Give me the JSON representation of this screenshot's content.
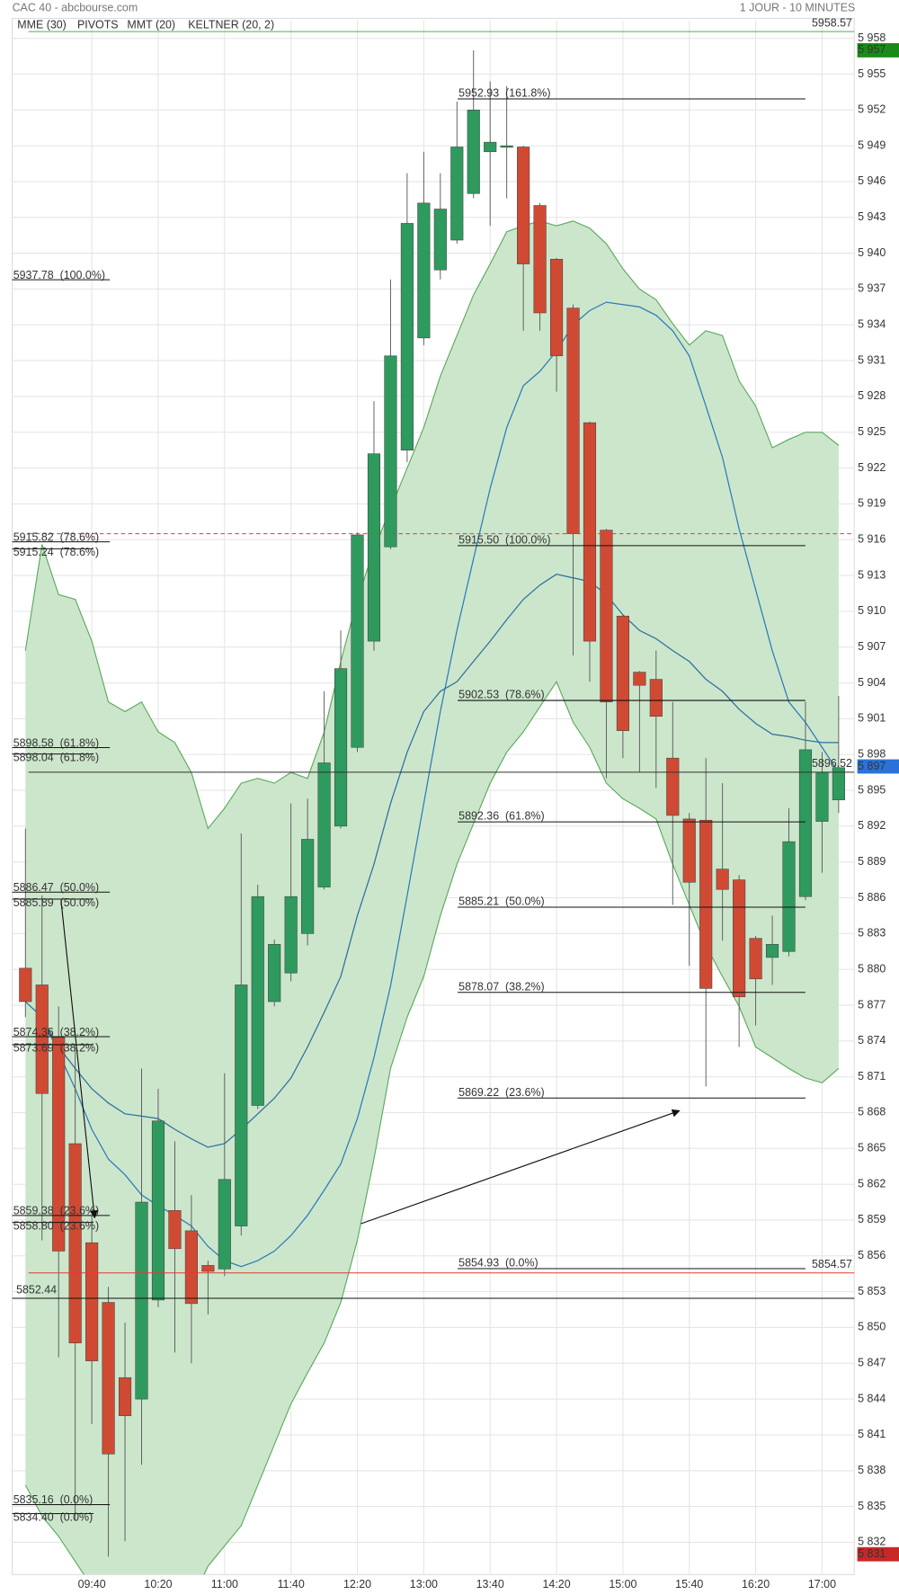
{
  "chart_data": {
    "type": "candlestick",
    "source": "CAC 40 - abcbourse.com",
    "period": "1 JOUR - 10 MINUTES",
    "categories": [
      null,
      null,
      null,
      null,
      "09:40",
      null,
      null,
      null,
      "10:20",
      null,
      null,
      null,
      "11:00",
      null,
      null,
      null,
      "11:40",
      null,
      null,
      null,
      "12:20",
      null,
      null,
      null,
      "13:00",
      null,
      null,
      null,
      "13:40",
      null,
      null,
      null,
      "14:20",
      null,
      null,
      null,
      "15:00",
      null,
      null,
      null,
      "15:40",
      null,
      null,
      null,
      "16:20",
      null,
      null,
      null,
      "17:00",
      null
    ],
    "open": [
      5880.1,
      5878.7,
      5874.3,
      5865.4,
      5857.1,
      5852.1,
      5845.8,
      5844.0,
      5852.3,
      5859.8,
      5858.1,
      5855.2,
      5854.9,
      5858.5,
      5868.6,
      5877.3,
      5879.7,
      5883.0,
      5886.9,
      5892.0,
      5898.6,
      5907.5,
      5915.4,
      5923.5,
      5932.9,
      5938.6,
      5941.1,
      5945.0,
      5948.5,
      5948.9,
      5948.9,
      5944.0,
      5939.5,
      5935.4,
      5925.8,
      5916.8,
      5909.6,
      5904.9,
      5904.3,
      5897.7,
      5892.6,
      5892.5,
      5888.4,
      5887.5,
      5882.6,
      5881.0,
      5881.5,
      5886.1,
      5892.4,
      5894.2
    ],
    "high": [
      5891.8,
      5886.2,
      5876.9,
      5873.5,
      5859.4,
      5853.4,
      5850.4,
      5871.7,
      5870.0,
      5865.6,
      5861.1,
      5855.6,
      5871.3,
      5891.4,
      5887.1,
      5882.5,
      5893.9,
      5894.3,
      5903.3,
      5908.4,
      5916.6,
      5927.6,
      5937.8,
      5946.7,
      5948.5,
      5946.7,
      5952.7,
      5957.0,
      5954.4,
      5954.0,
      5949.0,
      5944.2,
      5939.6,
      5935.7,
      5925.9,
      5916.9,
      5909.7,
      5905.0,
      5906.7,
      5902.4,
      5893.1,
      5897.7,
      5895.6,
      5887.9,
      5882.8,
      5884.5,
      5893.5,
      5902.4,
      5898.2,
      5902.9
    ],
    "low": [
      5876.0,
      5857.3,
      5847.5,
      5833.8,
      5841.9,
      5830.8,
      5832.1,
      5838.5,
      5851.7,
      5847.9,
      5847.0,
      5851.1,
      5854.3,
      5857.7,
      5868.3,
      5876.9,
      5879.0,
      5882.0,
      5886.7,
      5891.8,
      5898.2,
      5906.7,
      5915.2,
      5922.5,
      5932.3,
      5937.8,
      5940.8,
      5944.6,
      5942.3,
      5944.6,
      5933.5,
      5933.5,
      5928.4,
      5906.3,
      5904.1,
      5896.0,
      5897.7,
      5896.5,
      5895.2,
      5885.4,
      5880.3,
      5870.2,
      5882.4,
      5873.5,
      5875.3,
      5878.7,
      5881.1,
      5885.8,
      5888.1,
      5893.1
    ],
    "close": [
      5877.3,
      5869.6,
      5856.4,
      5848.7,
      5847.2,
      5839.4,
      5842.6,
      5860.5,
      5867.3,
      5856.6,
      5852.0,
      5854.7,
      5862.4,
      5878.7,
      5886.1,
      5882.1,
      5886.1,
      5890.9,
      5897.3,
      5905.2,
      5916.4,
      5923.2,
      5931.4,
      5942.5,
      5944.2,
      5943.7,
      5948.9,
      5952.0,
      5949.3,
      5949.0,
      5939.1,
      5935.0,
      5931.4,
      5916.5,
      5907.5,
      5902.4,
      5900.0,
      5903.8,
      5901.2,
      5892.9,
      5887.3,
      5878.4,
      5886.7,
      5877.7,
      5879.2,
      5882.1,
      5890.7,
      5898.4,
      5896.5,
      5896.9
    ],
    "up_color": "#2e9a5e",
    "down_color": "#d04a33",
    "series": [
      {
        "name": "MME (30)",
        "color": "#2b6f9e",
        "values": [
          5877.3,
          5876.0,
          5873.5,
          5871.7,
          5870.0,
          5868.8,
          5867.9,
          5867.7,
          5867.5,
          5866.6,
          5865.8,
          5865.1,
          5865.4,
          5866.6,
          5867.9,
          5869.2,
          5870.9,
          5873.5,
          5876.4,
          5879.4,
          5884.5,
          5888.8,
          5893.9,
          5898.2,
          5901.6,
          5903.3,
          5904.1,
          5905.8,
          5907.5,
          5909.3,
          5911.0,
          5912.2,
          5913.1,
          5912.8,
          5912.5,
          5911.4,
          5909.7,
          5908.4,
          5907.7,
          5906.7,
          5905.8,
          5904.3,
          5903.3,
          5901.8,
          5900.6,
          5899.7,
          5899.5,
          5899.2,
          5899.0,
          5899.0
        ]
      },
      {
        "name": "PIVOTS",
        "color": "#555555"
      },
      {
        "name": "MMT (20)",
        "color": "#2b7bb8",
        "values": [
          5877.3,
          5876.0,
          5873.0,
          5870.0,
          5866.6,
          5864.1,
          5862.8,
          5861.1,
          5860.2,
          5859.4,
          5858.5,
          5856.8,
          5855.6,
          5855.1,
          5855.6,
          5856.4,
          5857.7,
          5859.4,
          5861.5,
          5863.7,
          5867.5,
          5872.6,
          5878.6,
          5886.2,
          5893.9,
          5901.6,
          5908.4,
          5914.4,
          5920.3,
          5925.4,
          5928.9,
          5930.1,
          5931.8,
          5934.0,
          5935.2,
          5935.9,
          5935.7,
          5935.5,
          5934.8,
          5933.5,
          5931.4,
          5927.2,
          5922.9,
          5916.9,
          5911.8,
          5906.7,
          5902.4,
          5900.7,
          5898.6,
          5896.5
        ]
      },
      {
        "name": "KELTNER (20, 2)",
        "color": "#5aaa5a",
        "fill": "#cce6cc",
        "upper": [
          5906.7,
          5915.6,
          5911.4,
          5911.0,
          5907.5,
          5902.4,
          5901.6,
          5902.4,
          5899.9,
          5899.0,
          5896.5,
          5891.8,
          5893.5,
          5895.6,
          5896.0,
          5895.6,
          5896.5,
          5896.0,
          5899.9,
          5905.8,
          5911.0,
          5915.2,
          5918.6,
          5922.0,
          5925.4,
          5929.7,
          5933.1,
          5936.5,
          5939.1,
          5941.8,
          5942.3,
          5942.7,
          5942.3,
          5942.7,
          5942.1,
          5940.8,
          5938.7,
          5937.0,
          5936.1,
          5934.1,
          5932.3,
          5933.5,
          5933.1,
          5929.3,
          5927.2,
          5923.7,
          5924.4,
          5925.0,
          5925.0,
          5923.9
        ],
        "lower": [
          5836.8,
          5834.2,
          5832.5,
          5830.4,
          5828.3,
          5827.4,
          5827.0,
          5826.6,
          5827.0,
          5827.0,
          5827.0,
          5830.0,
          5831.7,
          5833.4,
          5836.8,
          5840.2,
          5843.6,
          5846.2,
          5848.7,
          5852.1,
          5857.3,
          5864.1,
          5871.7,
          5876.0,
          5879.4,
          5884.5,
          5888.8,
          5892.2,
          5895.6,
          5898.2,
          5899.9,
          5902.0,
          5904.1,
          5900.7,
          5898.6,
          5895.6,
          5894.3,
          5893.5,
          5892.6,
          5888.8,
          5885.4,
          5882.0,
          5879.4,
          5876.9,
          5873.5,
          5872.6,
          5871.7,
          5870.9,
          5870.5,
          5871.7
        ]
      }
    ],
    "fibonacci": [
      {
        "levels": [
          {
            "value": 5937.78,
            "label": "5937.78  (100.0%)"
          },
          {
            "value": 5915.82,
            "label": "5915.82  (78.6%)"
          },
          {
            "value": 5898.58,
            "label": "5898.58  (61.8%)"
          },
          {
            "value": 5886.47,
            "label": "5886.47  (50.0%)"
          },
          {
            "value": 5874.36,
            "label": "5874.36  (38.2%)"
          },
          {
            "value": 5859.38,
            "label": "5859.38  (23.6%)"
          },
          {
            "value": 5835.16,
            "label": "5835.16  (0.0%)"
          }
        ]
      },
      {
        "levels": [
          {
            "value": 5915.24,
            "label": "5915.24  (78.6%)"
          },
          {
            "value": 5898.04,
            "label": "5898.04  (61.8%)"
          },
          {
            "value": 5885.89,
            "label": "5885.89  (50.0%)"
          },
          {
            "value": 5873.69,
            "label": "5873.69  (38.2%)"
          },
          {
            "value": 5858.8,
            "label": "5858.80  (23.6%)"
          },
          {
            "value": 5834.4,
            "label": "5834.40  (0.0%)"
          }
        ]
      },
      {
        "levels": [
          {
            "value": 5952.93,
            "label": "5952.93  (161.8%)"
          },
          {
            "value": 5915.5,
            "label": "5915.50  (100.0%)"
          },
          {
            "value": 5902.53,
            "label": "5902.53  (78.6%)"
          },
          {
            "value": 5892.36,
            "label": "5892.36  (61.8%)"
          },
          {
            "value": 5885.21,
            "label": "5885.21  (50.0%)"
          },
          {
            "value": 5878.07,
            "label": "5878.07  (38.2%)"
          },
          {
            "value": 5869.22,
            "label": "5869.22  (23.6%)"
          },
          {
            "value": 5854.93,
            "label": "5854.93  (0.0%)"
          }
        ]
      }
    ],
    "reference_lines": [
      {
        "value": 5958.57,
        "label": "5958.57",
        "color": "#4caf50"
      },
      {
        "value": 5896.52,
        "label": "5896.52",
        "color": "#333333"
      },
      {
        "value": 5854.57,
        "label": "5854.57",
        "color": "#e53935"
      },
      {
        "value": 5852.44,
        "label": "5852.44",
        "color": "#111111",
        "label_position": "left"
      },
      {
        "value": 5916.5,
        "color": "#e53935",
        "dashed": true
      }
    ],
    "price_markers": [
      {
        "value": 5957,
        "label": "5 957",
        "color": "#1a8a1a"
      },
      {
        "value": 5897,
        "label": "5 897",
        "color": "#2a72d8"
      },
      {
        "value": 5831,
        "label": "5 831",
        "color": "#c62828"
      }
    ],
    "ylim": [
      5829.3,
      5959.5
    ],
    "yticks": [
      {
        "value": 5832,
        "label": "5 832"
      },
      {
        "value": 5835,
        "label": "5 835"
      },
      {
        "value": 5838,
        "label": "5 838"
      },
      {
        "value": 5841,
        "label": "5 841"
      },
      {
        "value": 5844,
        "label": "5 844"
      },
      {
        "value": 5847,
        "label": "5 847"
      },
      {
        "value": 5850,
        "label": "5 850"
      },
      {
        "value": 5853,
        "label": "5 853"
      },
      {
        "value": 5856,
        "label": "5 856"
      },
      {
        "value": 5859,
        "label": "5 859"
      },
      {
        "value": 5862,
        "label": "5 862"
      },
      {
        "value": 5865,
        "label": "5 865"
      },
      {
        "value": 5868,
        "label": "5 868"
      },
      {
        "value": 5871,
        "label": "5 871"
      },
      {
        "value": 5874,
        "label": "5 874"
      },
      {
        "value": 5877,
        "label": "5 877"
      },
      {
        "value": 5880,
        "label": "5 880"
      },
      {
        "value": 5883,
        "label": "5 883"
      },
      {
        "value": 5886,
        "label": "5 886"
      },
      {
        "value": 5889,
        "label": "5 889"
      },
      {
        "value": 5892,
        "label": "5 892"
      },
      {
        "value": 5895,
        "label": "5 895"
      },
      {
        "value": 5898,
        "label": "5 898"
      },
      {
        "value": 5901,
        "label": "5 901"
      },
      {
        "value": 5904,
        "label": "5 904"
      },
      {
        "value": 5907,
        "label": "5 907"
      },
      {
        "value": 5910,
        "label": "5 910"
      },
      {
        "value": 5913,
        "label": "5 913"
      },
      {
        "value": 5916,
        "label": "5 916"
      },
      {
        "value": 5919,
        "label": "5 919"
      },
      {
        "value": 5922,
        "label": "5 922"
      },
      {
        "value": 5925,
        "label": "5 925"
      },
      {
        "value": 5928,
        "label": "5 928"
      },
      {
        "value": 5931,
        "label": "5 931"
      },
      {
        "value": 5934,
        "label": "5 934"
      },
      {
        "value": 5937,
        "label": "5 937"
      },
      {
        "value": 5940,
        "label": "5 940"
      },
      {
        "value": 5943,
        "label": "5 943"
      },
      {
        "value": 5946,
        "label": "5 946"
      },
      {
        "value": 5949,
        "label": "5 949"
      },
      {
        "value": 5952,
        "label": "5 952"
      },
      {
        "value": 5955,
        "label": "5 955"
      },
      {
        "value": 5958,
        "label": "5 958"
      }
    ],
    "grid": true
  }
}
